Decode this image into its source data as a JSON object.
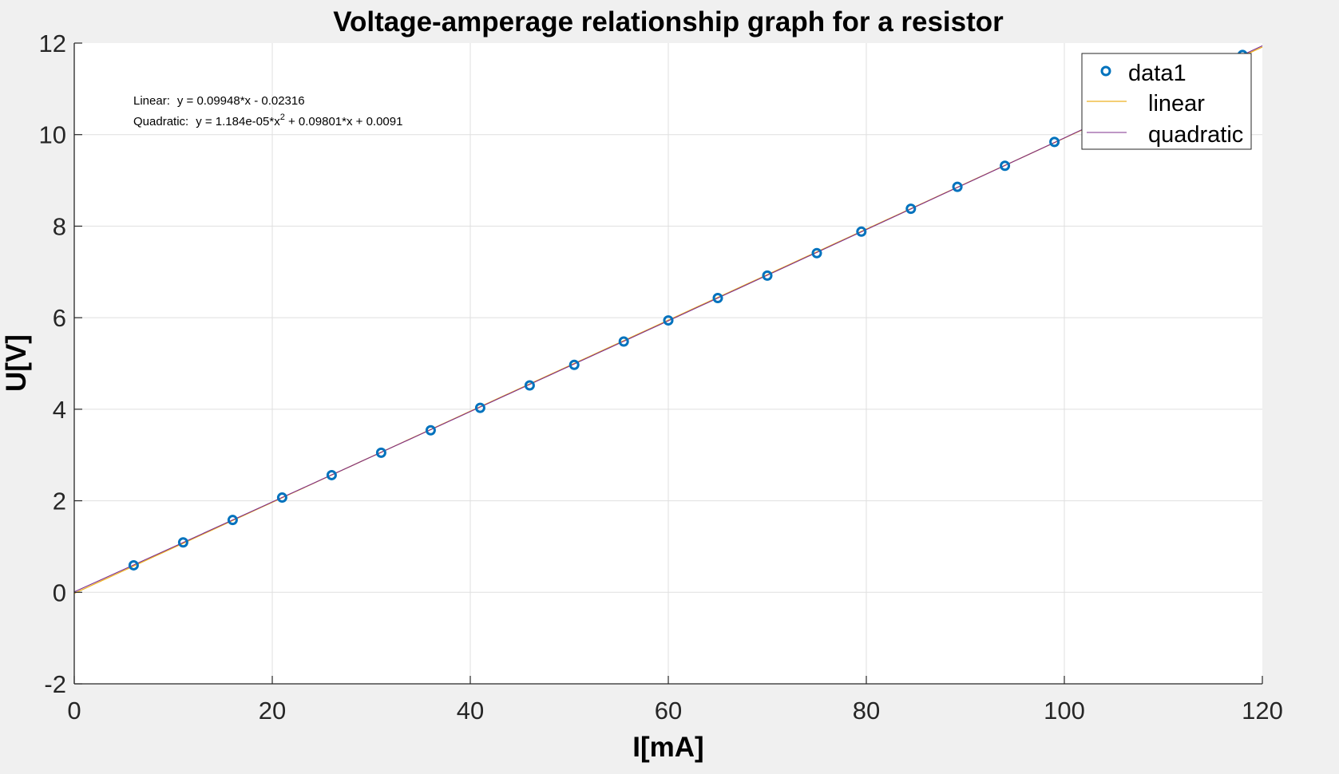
{
  "colors": {
    "figure_bg": "#f0f0f0",
    "axes_bg": "#ffffff",
    "grid": "#dfdfdf",
    "axis": "#262626",
    "data_marker": "#0072bd",
    "linear_fit": "#edb120",
    "quadratic_fit": "#7e2f8e",
    "text": "#000000"
  },
  "chart_data": {
    "type": "scatter",
    "title": "Voltage-amperage relationship graph for a resistor",
    "xlabel": "I[mA]",
    "ylabel": "U[V]",
    "xlim": [
      0,
      120
    ],
    "ylim": [
      -2,
      12
    ],
    "xticks": [
      0,
      20,
      40,
      60,
      80,
      100,
      120
    ],
    "xtick_labels": [
      "0",
      "20",
      "40",
      "60",
      "80",
      "100",
      "120"
    ],
    "yticks": [
      -2,
      0,
      2,
      4,
      6,
      8,
      10,
      12
    ],
    "ytick_labels": [
      "-2",
      "0",
      "2",
      "4",
      "6",
      "8",
      "10",
      "12"
    ],
    "grid": true,
    "legend_position": "top-right",
    "series": [
      {
        "name": "data1",
        "kind": "markers",
        "marker": "circle",
        "color": "#0072bd",
        "x": [
          6,
          11,
          16,
          21,
          26,
          31,
          36,
          41,
          46,
          50.5,
          55.5,
          60,
          65,
          70,
          75,
          79.5,
          84.5,
          89.2,
          94,
          99,
          118
        ],
        "y": [
          0.59,
          1.09,
          1.58,
          2.07,
          2.56,
          3.05,
          3.54,
          4.03,
          4.52,
          4.97,
          5.48,
          5.94,
          6.43,
          6.92,
          7.41,
          7.88,
          8.38,
          8.86,
          9.32,
          9.84,
          11.74
        ]
      },
      {
        "name": "linear",
        "kind": "line",
        "color": "#edb120",
        "coefficients": [
          0.09948,
          -0.02316
        ]
      },
      {
        "name": "quadratic",
        "kind": "line",
        "color": "#7e2f8e",
        "coefficients": [
          1.184e-05,
          0.09801,
          0.0091
        ]
      }
    ],
    "annotations": {
      "linear_label": "Linear:",
      "linear_equation": "y = 0.09948*x - 0.02316",
      "quadratic_label": "Quadratic:",
      "quadratic_equation_part1": "y = 1.184e-05*x",
      "quadratic_exponent": "2",
      "quadratic_equation_part2": " + 0.09801*x + 0.0091"
    }
  }
}
